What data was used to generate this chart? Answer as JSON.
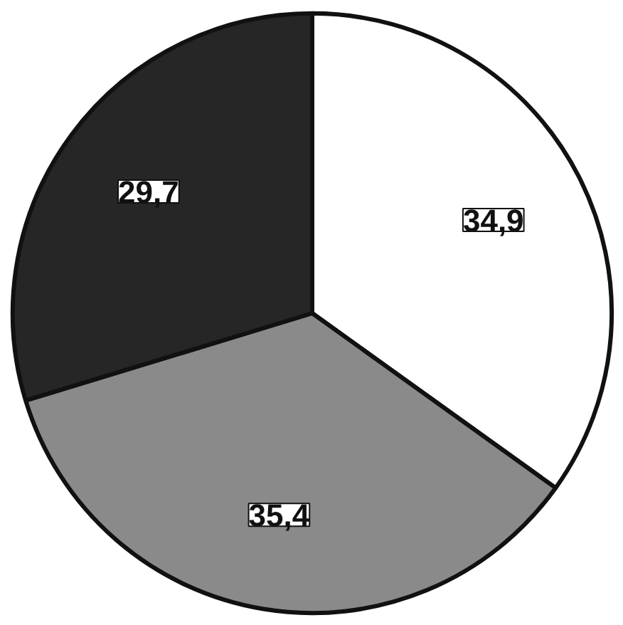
{
  "chart_data": {
    "type": "pie",
    "categories": [
      null,
      null,
      null
    ],
    "values": [
      34.9,
      35.4,
      29.7
    ],
    "colors": [
      "#ffffff",
      "#8a8a8a",
      "#262626"
    ],
    "value_labels": [
      "34,9",
      "35,4",
      "29,7"
    ]
  }
}
